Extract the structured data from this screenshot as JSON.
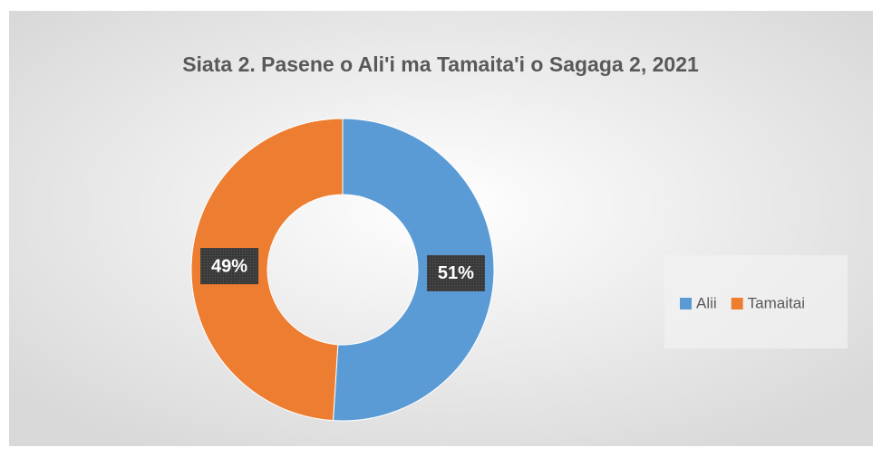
{
  "chart_data": {
    "type": "donut",
    "title": "Siata 2. Pasene o Ali'i ma Tamaita'i o Sagaga 2, 2021",
    "categories": [
      "Alii",
      "Tamaitai"
    ],
    "values": [
      51,
      49
    ],
    "value_labels": [
      "51%",
      "49%"
    ],
    "colors": [
      "#5b9bd5",
      "#ed7d31"
    ],
    "legend": "right"
  }
}
